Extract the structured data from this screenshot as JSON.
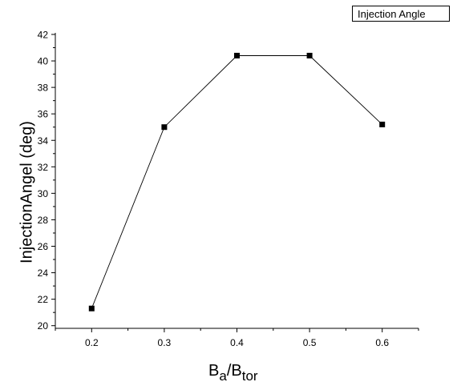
{
  "chart_data": {
    "type": "line",
    "x": [
      0.2,
      0.3,
      0.4,
      0.5,
      0.6
    ],
    "series": [
      {
        "name": "Injection Angle",
        "values": [
          21.3,
          35.0,
          40.4,
          40.4,
          35.2
        ]
      }
    ],
    "xlim": [
      0.15,
      0.65
    ],
    "ylim": [
      19.8,
      42
    ],
    "xticks": [
      "0.2",
      "0.3",
      "0.4",
      "0.5",
      "0.6"
    ],
    "yticks": [
      "20",
      "22",
      "24",
      "26",
      "28",
      "30",
      "32",
      "34",
      "36",
      "38",
      "40",
      "42"
    ],
    "ylabel": "InjectionAngel (deg)",
    "xlabel": {
      "base1": "B",
      "sub1": "a",
      "sep": "/",
      "base2": "B",
      "sub2": "tor"
    },
    "legend": {
      "label": "Injection Angle",
      "position": "top-right"
    },
    "grid": false,
    "colors": {
      "line": "#000000",
      "marker": "#000000",
      "axis": "#000000"
    }
  }
}
